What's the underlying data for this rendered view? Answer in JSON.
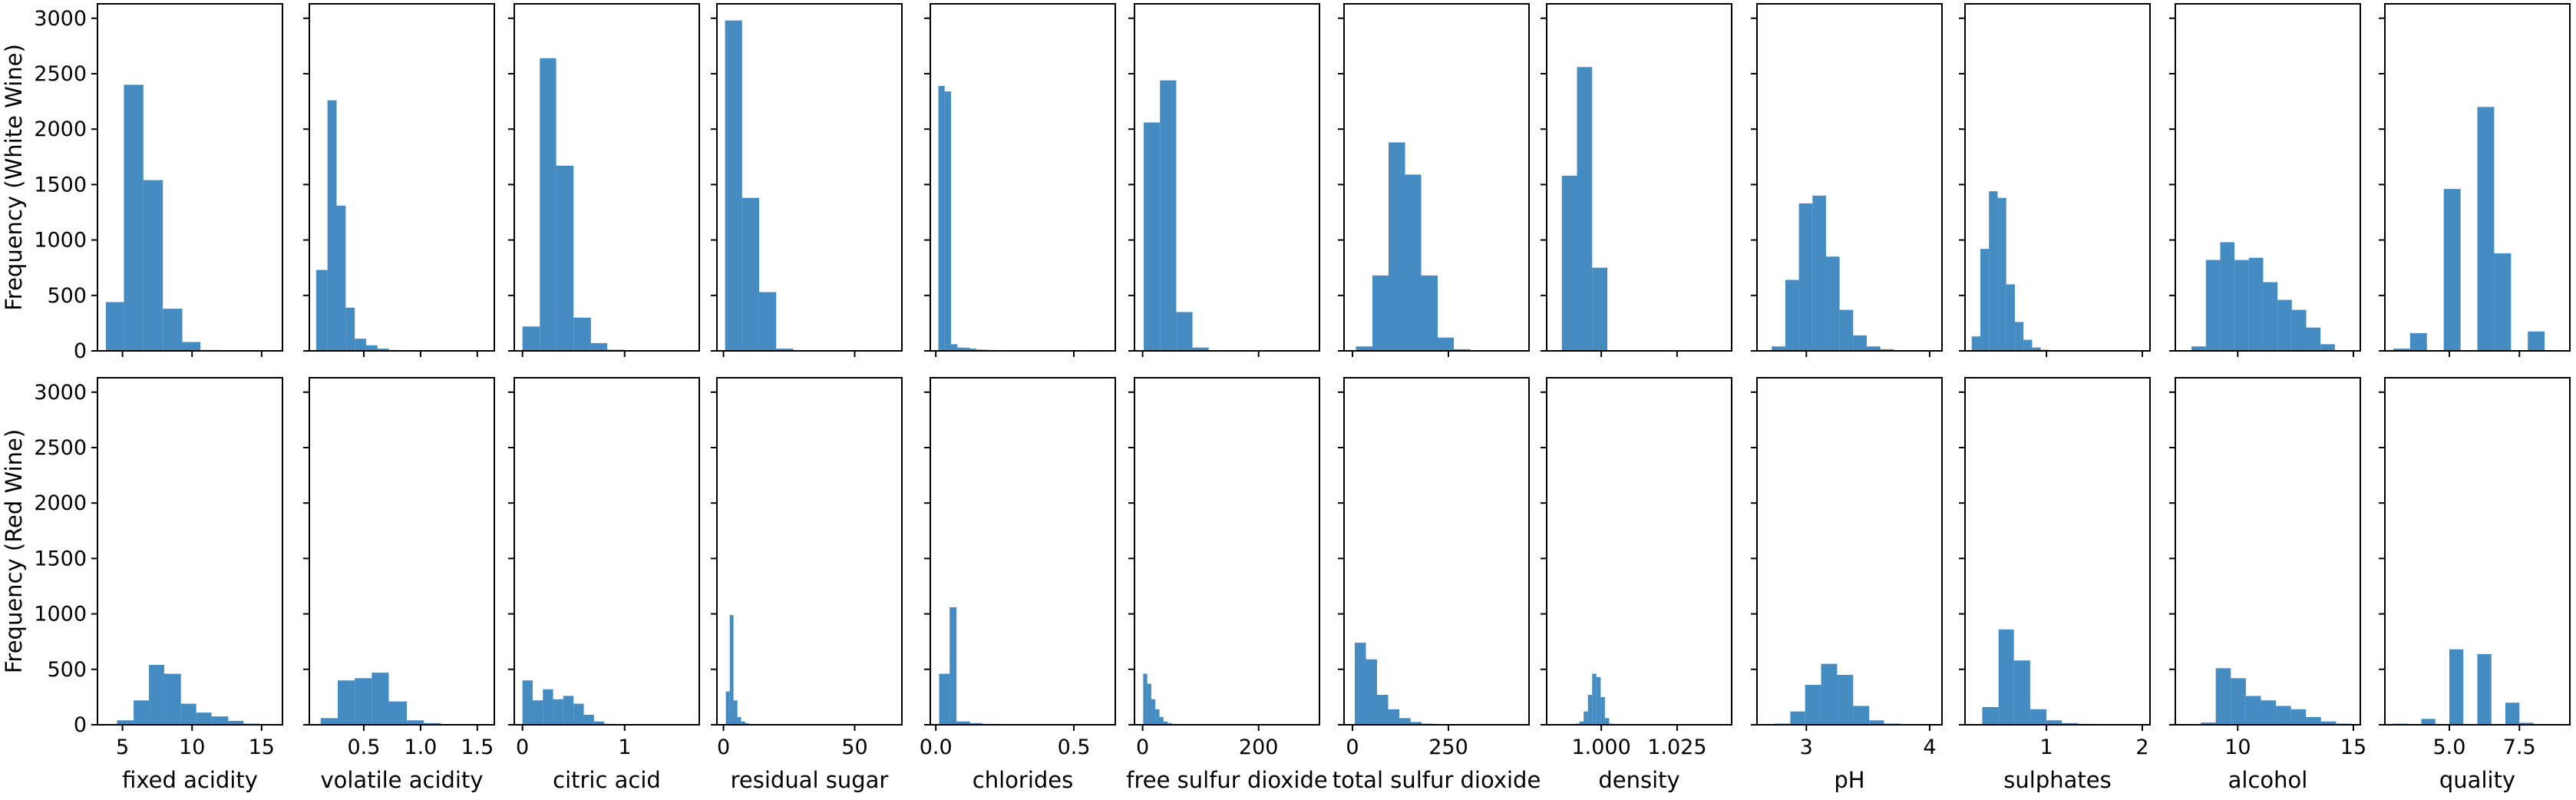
{
  "colors": {
    "bar": "#3b86bf",
    "frame": "#000000",
    "background": "#ffffff"
  },
  "y_axis": {
    "ticks": [
      0,
      500,
      1000,
      1500,
      2000,
      2500,
      3000
    ],
    "range": [
      0,
      3130
    ]
  },
  "rows": [
    {
      "id": "white",
      "ylabel": "Frequency (White Wine)"
    },
    {
      "id": "red",
      "ylabel": "Frequency (Red Wine)"
    }
  ],
  "chart_data": [
    {
      "type": "bar",
      "variable": "fixed acidity",
      "xlabel": "fixed acidity",
      "xlim": [
        3.2,
        16.5
      ],
      "xticks": [
        5,
        10,
        15
      ],
      "white": {
        "edges": [
          3.8,
          5.1,
          6.5,
          7.9,
          9.3,
          10.6,
          12.0,
          13.4,
          14.8
        ],
        "values": [
          440,
          2400,
          1540,
          380,
          80,
          8,
          2,
          1
        ]
      },
      "red": {
        "edges": [
          4.6,
          5.8,
          6.9,
          8.0,
          9.2,
          10.3,
          11.4,
          12.6,
          13.7,
          14.8,
          15.9
        ],
        "values": [
          40,
          220,
          540,
          460,
          190,
          110,
          75,
          35,
          10,
          4
        ]
      }
    },
    {
      "type": "bar",
      "variable": "volatile acidity",
      "xlabel": "volatile acidity",
      "xlim": [
        0.02,
        1.65
      ],
      "xticks": [
        0.5,
        1.0,
        1.5
      ],
      "white": {
        "edges": [
          0.08,
          0.18,
          0.26,
          0.34,
          0.42,
          0.52,
          0.62,
          0.72,
          0.82,
          0.92,
          1.02,
          1.12
        ],
        "values": [
          730,
          2260,
          1310,
          390,
          110,
          50,
          20,
          8,
          5,
          3,
          2
        ]
      },
      "red": {
        "edges": [
          0.12,
          0.27,
          0.42,
          0.57,
          0.72,
          0.88,
          1.03,
          1.18,
          1.33,
          1.48,
          1.58
        ],
        "values": [
          60,
          400,
          420,
          470,
          210,
          40,
          15,
          4,
          3,
          2
        ]
      }
    },
    {
      "type": "bar",
      "variable": "citric acid",
      "xlabel": "citric acid",
      "xlim": [
        -0.08,
        1.73
      ],
      "xticks": [
        0,
        1
      ],
      "white": {
        "edges": [
          0.0,
          0.17,
          0.33,
          0.5,
          0.67,
          0.83,
          1.0,
          1.17,
          1.33,
          1.5,
          1.66
        ],
        "values": [
          220,
          2640,
          1670,
          300,
          70,
          10,
          3,
          2,
          1,
          1
        ]
      },
      "red": {
        "edges": [
          0.0,
          0.1,
          0.2,
          0.3,
          0.4,
          0.5,
          0.6,
          0.7,
          0.8,
          0.9,
          1.0
        ],
        "values": [
          400,
          220,
          320,
          230,
          260,
          190,
          90,
          30,
          8,
          5
        ]
      }
    },
    {
      "type": "bar",
      "variable": "residual sugar",
      "xlabel": "residual sugar",
      "xlim": [
        -2.5,
        68
      ],
      "xticks": [
        0,
        50
      ],
      "white": {
        "edges": [
          0.6,
          7.1,
          13.6,
          20.1,
          26.6,
          33.1,
          39.6,
          46.1,
          52.6,
          59.1,
          65.6
        ],
        "values": [
          2980,
          1380,
          530,
          20,
          5,
          2,
          1,
          1,
          1,
          1
        ]
      },
      "red": {
        "edges": [
          0.9,
          2.4,
          3.8,
          5.3,
          6.7,
          8.2,
          9.6,
          11.1,
          12.5,
          14.0,
          15.5
        ],
        "values": [
          300,
          990,
          220,
          70,
          30,
          15,
          8,
          6,
          3,
          2
        ]
      }
    },
    {
      "type": "bar",
      "variable": "chlorides",
      "xlabel": "chlorides",
      "xlim": [
        -0.02,
        0.65
      ],
      "xticks": [
        0.0,
        0.5
      ],
      "white": {
        "edges": [
          0.009,
          0.032,
          0.055,
          0.078,
          0.101,
          0.124,
          0.147,
          0.17,
          0.193,
          0.216,
          0.239,
          0.262,
          0.285,
          0.308,
          0.331,
          0.354
        ],
        "values": [
          2390,
          2340,
          60,
          30,
          28,
          20,
          12,
          10,
          8,
          7,
          6,
          5,
          4,
          3,
          2
        ]
      },
      "red": {
        "edges": [
          0.012,
          0.05,
          0.075,
          0.124,
          0.17,
          0.23,
          0.3,
          0.37,
          0.44,
          0.51,
          0.61
        ],
        "values": [
          460,
          1060,
          30,
          15,
          8,
          6,
          4,
          3,
          2,
          2
        ]
      }
    },
    {
      "type": "bar",
      "variable": "free sulfur dioxide",
      "xlabel": "free sulfur dioxide",
      "xlim": [
        -14,
        305
      ],
      "xticks": [
        0,
        200
      ],
      "white": {
        "edges": [
          2,
          30,
          58,
          86,
          114,
          142,
          170,
          198,
          226,
          254,
          289
        ],
        "values": [
          2060,
          2440,
          350,
          30,
          4,
          2,
          1,
          1,
          1,
          1
        ]
      },
      "red": {
        "edges": [
          1,
          8,
          15,
          22,
          29,
          36,
          43,
          50,
          57,
          64,
          72
        ],
        "values": [
          460,
          370,
          230,
          140,
          70,
          30,
          15,
          8,
          4,
          2
        ]
      }
    },
    {
      "type": "bar",
      "variable": "total sulfur dioxide",
      "xlabel": "total sulfur dioxide",
      "xlim": [
        -22,
        460
      ],
      "xticks": [
        0,
        250
      ],
      "white": {
        "edges": [
          9,
          52,
          94,
          137,
          179,
          222,
          264,
          307,
          349,
          392,
          440
        ],
        "values": [
          40,
          680,
          1880,
          1590,
          680,
          120,
          15,
          4,
          2,
          1
        ]
      },
      "red": {
        "edges": [
          6,
          35,
          64,
          93,
          122,
          151,
          180,
          209,
          238,
          267,
          296
        ],
        "values": [
          740,
          590,
          270,
          140,
          60,
          25,
          10,
          5,
          3,
          2
        ]
      }
    },
    {
      "type": "bar",
      "variable": "density",
      "xlabel": "density",
      "xlim": [
        0.982,
        1.043
      ],
      "xticks": [
        1.0,
        1.025
      ],
      "white": {
        "edges": [
          0.987,
          0.992,
          0.997,
          1.002,
          1.007,
          1.012,
          1.017,
          1.022,
          1.027,
          1.032,
          1.039
        ],
        "values": [
          1580,
          2560,
          750,
          5,
          3,
          2,
          1,
          1,
          1,
          1
        ]
      },
      "red": {
        "edges": [
          0.99,
          0.9914,
          0.9928,
          0.9942,
          0.9956,
          0.997,
          0.9984,
          0.9998,
          1.0012,
          1.0026,
          1.004
        ],
        "values": [
          5,
          10,
          30,
          120,
          270,
          460,
          430,
          250,
          60,
          10
        ]
      }
    },
    {
      "type": "bar",
      "variable": "pH",
      "xlabel": "pH",
      "xlim": [
        2.6,
        4.1
      ],
      "xticks": [
        3,
        4
      ],
      "white": {
        "edges": [
          2.72,
          2.83,
          2.94,
          3.05,
          3.16,
          3.27,
          3.38,
          3.49,
          3.6,
          3.71,
          3.82
        ],
        "values": [
          40,
          640,
          1330,
          1400,
          850,
          370,
          140,
          40,
          15,
          5
        ]
      },
      "red": {
        "edges": [
          2.74,
          2.87,
          2.99,
          3.12,
          3.25,
          3.38,
          3.51,
          3.63,
          3.76,
          3.89,
          4.01
        ],
        "values": [
          10,
          120,
          360,
          550,
          450,
          170,
          40,
          10,
          4,
          2
        ]
      }
    },
    {
      "type": "bar",
      "variable": "sulphates",
      "xlabel": "sulphates",
      "xlim": [
        0.15,
        2.08
      ],
      "xticks": [
        1,
        2
      ],
      "white": {
        "edges": [
          0.22,
          0.31,
          0.4,
          0.49,
          0.58,
          0.67,
          0.76,
          0.85,
          0.94,
          1.03,
          1.08
        ],
        "values": [
          130,
          920,
          1440,
          1380,
          600,
          260,
          100,
          30,
          10,
          5
        ]
      },
      "red": {
        "edges": [
          0.33,
          0.5,
          0.66,
          0.83,
          1.0,
          1.16,
          1.33,
          1.5,
          1.66,
          1.83,
          2.0
        ],
        "values": [
          160,
          860,
          580,
          140,
          40,
          15,
          8,
          4,
          3,
          2
        ]
      }
    },
    {
      "type": "bar",
      "variable": "alcohol",
      "xlabel": "alcohol",
      "xlim": [
        7.3,
        15.3
      ],
      "xticks": [
        10,
        15
      ],
      "white": {
        "edges": [
          8.0,
          8.62,
          9.24,
          9.86,
          10.48,
          11.1,
          11.72,
          12.34,
          12.96,
          13.58,
          14.2
        ],
        "values": [
          40,
          820,
          980,
          820,
          840,
          620,
          460,
          370,
          210,
          60
        ]
      },
      "red": {
        "edges": [
          8.4,
          9.05,
          9.7,
          10.35,
          11.0,
          11.65,
          12.3,
          12.95,
          13.6,
          14.25,
          14.9
        ],
        "values": [
          20,
          510,
          420,
          260,
          220,
          170,
          140,
          70,
          30,
          10
        ]
      }
    },
    {
      "type": "bar",
      "variable": "quality",
      "xlabel": "quality",
      "xlim": [
        2.7,
        9.3
      ],
      "xticks": [
        5.0,
        7.5
      ],
      "white": {
        "edges": [
          3.0,
          3.6,
          4.2,
          4.8,
          5.4,
          6.0,
          6.6,
          7.2,
          7.8,
          8.4,
          9.0
        ],
        "values": [
          20,
          160,
          0,
          1460,
          0,
          2200,
          880,
          0,
          175,
          5
        ]
      },
      "red": {
        "edges": [
          3.0,
          3.5,
          4.0,
          4.5,
          5.0,
          5.5,
          6.0,
          6.5,
          7.0,
          7.5,
          8.0
        ],
        "values": [
          10,
          0,
          53,
          0,
          681,
          0,
          638,
          0,
          199,
          18
        ]
      }
    }
  ]
}
